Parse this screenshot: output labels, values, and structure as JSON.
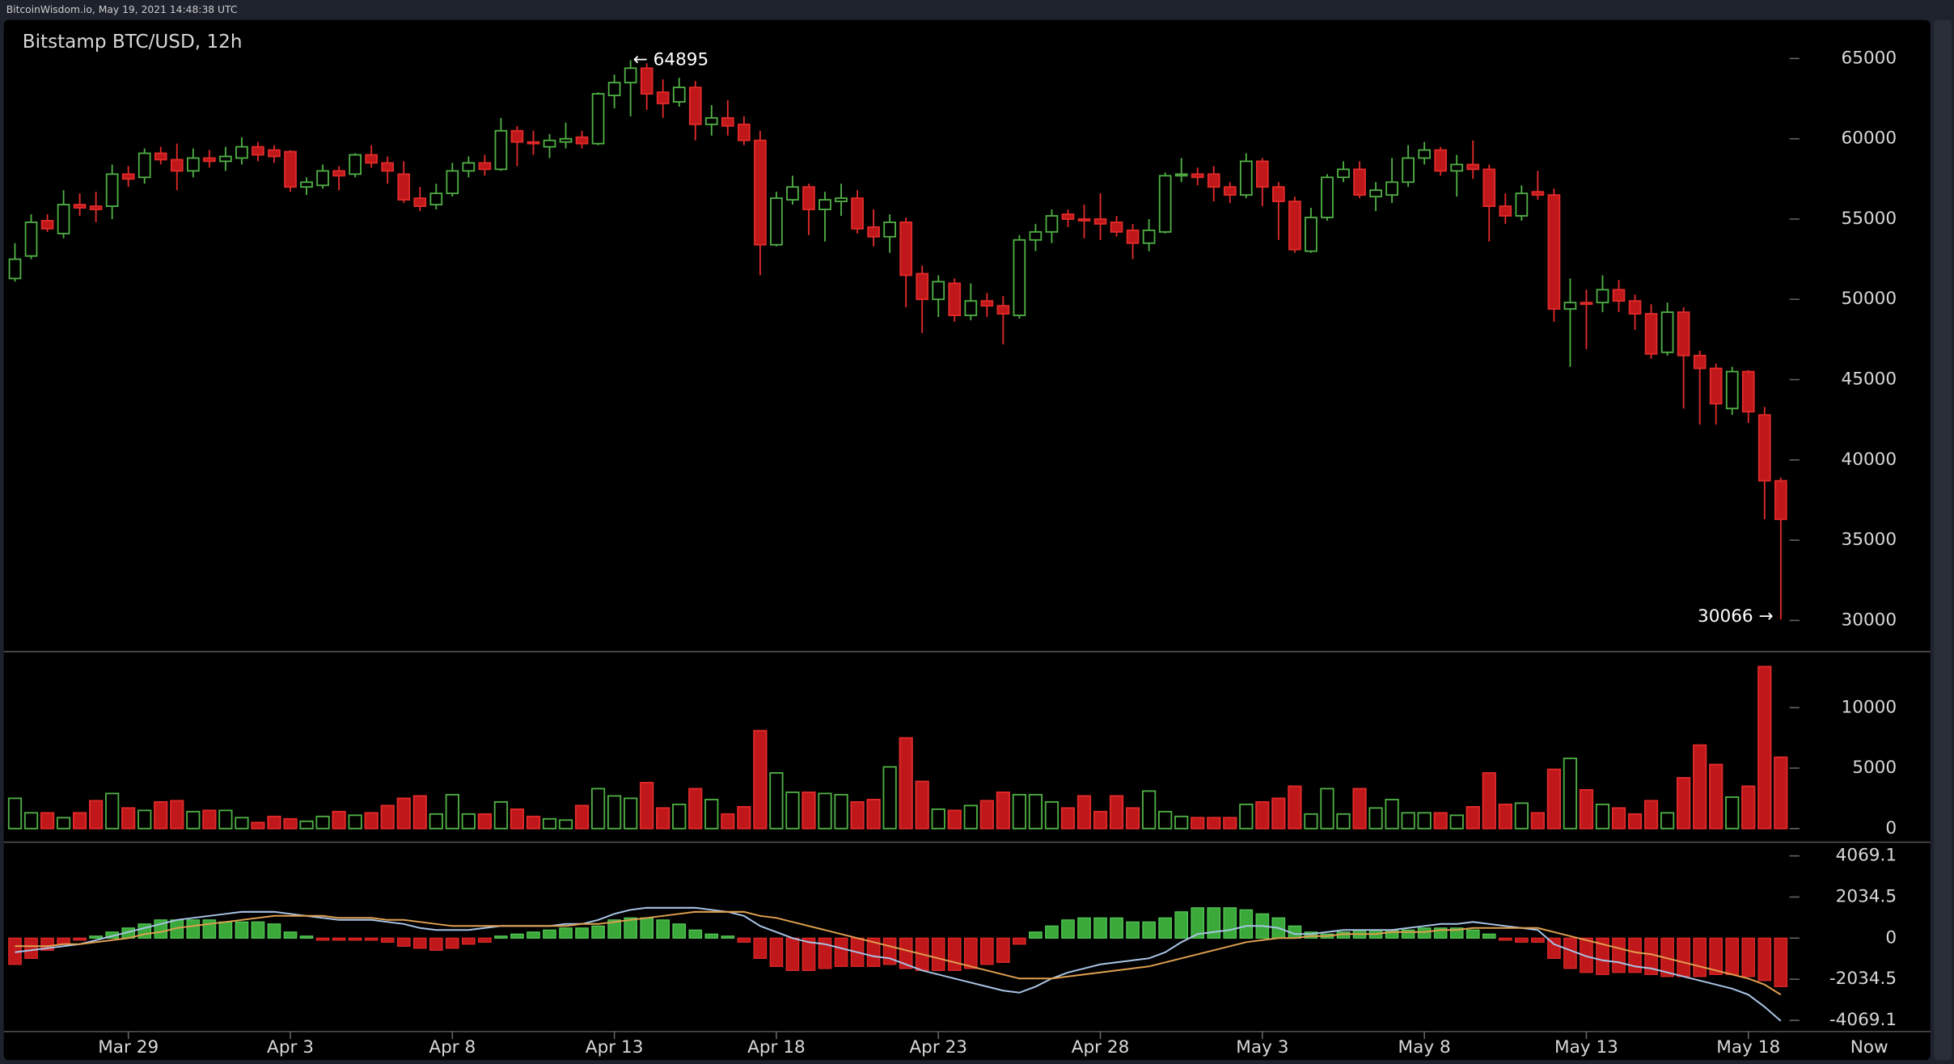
{
  "header": "BitcoinWisdom.io, May 19, 2021 14:48:38 UTC",
  "now_label": "Now",
  "chart_data": [
    {
      "type": "candlestick",
      "title": "Bitstamp BTC/USD, 12h",
      "categories": [
        null,
        null,
        null,
        null,
        null,
        null,
        null,
        "Mar 29",
        null,
        null,
        null,
        null,
        null,
        null,
        null,
        null,
        null,
        "Apr 3",
        null,
        null,
        null,
        null,
        null,
        null,
        null,
        null,
        null,
        "Apr 8",
        null,
        null,
        null,
        null,
        null,
        null,
        null,
        null,
        null,
        "Apr 13",
        null,
        null,
        null,
        null,
        null,
        null,
        null,
        null,
        null,
        "Apr 18",
        null,
        null,
        null,
        null,
        null,
        null,
        null,
        null,
        null,
        "Apr 23",
        null,
        null,
        null,
        null,
        null,
        null,
        null,
        null,
        null,
        "Apr 28",
        null,
        null,
        null,
        null,
        null,
        null,
        null,
        null,
        null,
        "May 3",
        null,
        null,
        null,
        null,
        null,
        null,
        null,
        null,
        null,
        "May 8",
        null,
        null,
        null,
        null,
        null,
        null,
        null,
        null,
        null,
        "May 13",
        null,
        null,
        null,
        null,
        null,
        null,
        null,
        null,
        null,
        "May 18",
        null,
        null
      ],
      "open": [
        51300,
        52700,
        54900,
        54100,
        55900,
        55800,
        55800,
        57800,
        57600,
        59100,
        58700,
        58000,
        58800,
        58600,
        58800,
        59500,
        59300,
        59200,
        57000,
        57100,
        58000,
        57800,
        59000,
        58500,
        57800,
        56300,
        55900,
        56600,
        58000,
        58500,
        58100,
        60500,
        59800,
        59500,
        59800,
        60100,
        59700,
        62700,
        63500,
        64400,
        62900,
        62300,
        63200,
        60900,
        61300,
        60900,
        59900,
        53400,
        56200,
        57000,
        55600,
        56100,
        56300,
        54500,
        53900,
        54800,
        51600,
        50000,
        51000,
        49000,
        49900,
        49600,
        49000,
        53700,
        54200,
        55300,
        55000,
        55000,
        54800,
        54300,
        53500,
        54200,
        57700,
        57800,
        57800,
        57000,
        56500,
        58600,
        57000,
        56100,
        53000,
        55100,
        57600,
        58100,
        56400,
        56500,
        57300,
        58800,
        59300,
        58000,
        58400,
        58100,
        55800,
        55200,
        56700,
        56500,
        49400,
        49800,
        49800,
        50600,
        49900,
        49100,
        46700,
        49200,
        46500,
        45700,
        43200,
        45500,
        42800,
        38700
      ],
      "high": [
        53500,
        55300,
        55300,
        56800,
        56600,
        56700,
        58400,
        58300,
        59400,
        59500,
        59700,
        59400,
        59300,
        59500,
        60100,
        59800,
        59600,
        59300,
        57600,
        58400,
        58300,
        59100,
        59600,
        58900,
        58600,
        57000,
        57200,
        58500,
        58900,
        59000,
        61300,
        60800,
        60500,
        60300,
        61000,
        60500,
        62900,
        64000,
        64895,
        64700,
        63700,
        63800,
        63600,
        62100,
        62400,
        61400,
        60500,
        56700,
        57700,
        57200,
        56700,
        57200,
        56800,
        55600,
        55300,
        55100,
        52100,
        51500,
        51300,
        51000,
        50400,
        50200,
        54000,
        54700,
        55600,
        55600,
        55900,
        56600,
        55200,
        54700,
        55000,
        57900,
        58800,
        58200,
        58300,
        57300,
        59100,
        58800,
        57300,
        56400,
        55700,
        57800,
        58600,
        58600,
        57300,
        58800,
        59600,
        59800,
        59500,
        59000,
        59900,
        58400,
        56600,
        57100,
        58000,
        56900,
        51300,
        50600,
        51500,
        51200,
        50300,
        49700,
        49800,
        49500,
        46800,
        46000,
        45800,
        45600,
        43300,
        38900
      ],
      "low": [
        51100,
        52500,
        54200,
        53800,
        55200,
        54800,
        55000,
        57000,
        57200,
        58400,
        56800,
        57600,
        58200,
        58000,
        58400,
        58600,
        58500,
        56700,
        56500,
        56900,
        56800,
        57600,
        58200,
        57200,
        56000,
        55500,
        55600,
        56400,
        57600,
        57700,
        58000,
        58300,
        59000,
        58800,
        59400,
        59400,
        59600,
        61900,
        61400,
        61800,
        61300,
        62000,
        59900,
        60200,
        60200,
        59600,
        51500,
        53300,
        55900,
        54000,
        53600,
        55200,
        54100,
        53300,
        52900,
        49500,
        47900,
        48900,
        48600,
        48700,
        48900,
        47200,
        48800,
        53000,
        53500,
        54500,
        53800,
        53700,
        53900,
        52500,
        53000,
        54100,
        57300,
        57100,
        56100,
        56000,
        56300,
        55800,
        53700,
        52900,
        52900,
        54900,
        57300,
        56300,
        55500,
        56000,
        57000,
        58400,
        57700,
        56400,
        57500,
        53600,
        54700,
        54900,
        56200,
        48600,
        45800,
        46900,
        49200,
        49200,
        48100,
        46300,
        46500,
        43200,
        42200,
        42200,
        42800,
        42300,
        36300,
        30066
      ],
      "close": [
        52500,
        54800,
        54400,
        55900,
        55700,
        55600,
        57800,
        57500,
        59100,
        58700,
        58000,
        58800,
        58600,
        58900,
        59500,
        59000,
        58900,
        57000,
        57300,
        58000,
        57700,
        59000,
        58500,
        58000,
        56200,
        55800,
        56600,
        58000,
        58500,
        58100,
        60500,
        59800,
        59700,
        59900,
        60000,
        59700,
        62800,
        63500,
        64400,
        62800,
        62200,
        63200,
        60900,
        61300,
        60800,
        59900,
        53400,
        56300,
        57000,
        55600,
        56200,
        56300,
        54400,
        53900,
        54800,
        51500,
        50000,
        51100,
        49000,
        49900,
        49600,
        49100,
        53700,
        54200,
        55200,
        55000,
        54900,
        54700,
        54200,
        53500,
        54300,
        57700,
        57800,
        57600,
        57000,
        56500,
        58600,
        57000,
        56100,
        53100,
        55100,
        57600,
        58100,
        56500,
        56800,
        57300,
        58800,
        59300,
        58000,
        58400,
        58100,
        55800,
        55200,
        56600,
        56500,
        49400,
        49800,
        49700,
        50600,
        49900,
        49100,
        46600,
        49200,
        46500,
        45700,
        43500,
        45500,
        43000,
        38700,
        36300
      ],
      "up_color": "#4fae44",
      "down_color": "#c0181a",
      "high_label": "← 64895",
      "low_label": "30066 →",
      "ylim": [
        28060,
        67400
      ],
      "yticks": [
        30000,
        35000,
        40000,
        45000,
        50000,
        55000,
        60000,
        65000
      ]
    },
    {
      "type": "volume",
      "values": [
        2500,
        1300,
        1300,
        900,
        1300,
        2300,
        2900,
        1700,
        1500,
        2200,
        2300,
        1400,
        1500,
        1500,
        900,
        500,
        1000,
        800,
        600,
        1000,
        1400,
        1100,
        1300,
        1900,
        2500,
        2700,
        1200,
        2800,
        1200,
        1200,
        2200,
        1600,
        1000,
        800,
        700,
        1900,
        3300,
        2700,
        2500,
        3800,
        1700,
        2000,
        3300,
        2400,
        1200,
        1800,
        8100,
        4600,
        3000,
        3000,
        2900,
        2800,
        2200,
        2400,
        5100,
        7500,
        3900,
        1600,
        1500,
        1900,
        2300,
        3000,
        2800,
        2800,
        2200,
        1700,
        2700,
        1400,
        2700,
        1700,
        3100,
        1400,
        1000,
        900,
        900,
        900,
        2000,
        2200,
        2500,
        3500,
        1200,
        3300,
        1200,
        3300,
        1700,
        2400,
        1300,
        1300,
        1300,
        1100,
        1800,
        4600,
        2000,
        2100,
        1300,
        4900,
        5800,
        3200,
        2000,
        1700,
        1200,
        2300,
        1300,
        4200,
        6900,
        5300,
        2600,
        3500,
        13400,
        5900
      ],
      "ylim": [
        -1130,
        14640
      ],
      "yticks": [
        0,
        5000,
        10000
      ]
    },
    {
      "type": "macd",
      "histogram": [
        -1300,
        -1000,
        -600,
        -300,
        -100,
        100,
        300,
        500,
        700,
        900,
        900,
        900,
        900,
        800,
        800,
        800,
        700,
        300,
        100,
        -100,
        -100,
        -100,
        -100,
        -200,
        -400,
        -500,
        -600,
        -500,
        -300,
        -200,
        100,
        200,
        300,
        400,
        500,
        500,
        600,
        900,
        1000,
        1000,
        900,
        700,
        400,
        200,
        100,
        -200,
        -1000,
        -1400,
        -1600,
        -1600,
        -1500,
        -1400,
        -1400,
        -1400,
        -1300,
        -1500,
        -1600,
        -1600,
        -1600,
        -1500,
        -1300,
        -1200,
        -300,
        300,
        600,
        900,
        1000,
        1000,
        1000,
        800,
        800,
        1000,
        1300,
        1500,
        1500,
        1500,
        1400,
        1200,
        1000,
        600,
        300,
        200,
        300,
        400,
        400,
        400,
        400,
        500,
        500,
        500,
        400,
        200,
        -100,
        -200,
        -200,
        -1000,
        -1500,
        -1700,
        -1800,
        -1700,
        -1700,
        -1800,
        -1900,
        -1900,
        -1900,
        -1800,
        -1800,
        -1900,
        -2100,
        -2400
      ],
      "macd": [
        -700,
        -600,
        -500,
        -400,
        -300,
        -100,
        100,
        300,
        500,
        700,
        900,
        1000,
        1100,
        1200,
        1300,
        1300,
        1300,
        1200,
        1100,
        1000,
        900,
        900,
        900,
        800,
        700,
        500,
        400,
        400,
        400,
        500,
        600,
        600,
        600,
        600,
        700,
        700,
        900,
        1200,
        1400,
        1500,
        1500,
        1500,
        1500,
        1400,
        1300,
        1100,
        600,
        300,
        0,
        -200,
        -300,
        -500,
        -700,
        -900,
        -1000,
        -1300,
        -1600,
        -1800,
        -2000,
        -2200,
        -2400,
        -2600,
        -2700,
        -2400,
        -2000,
        -1700,
        -1500,
        -1300,
        -1200,
        -1100,
        -1000,
        -700,
        -200,
        200,
        300,
        400,
        600,
        600,
        500,
        200,
        200,
        300,
        400,
        400,
        400,
        400,
        500,
        600,
        700,
        700,
        800,
        700,
        600,
        500,
        400,
        -300,
        -600,
        -900,
        -1100,
        -1200,
        -1400,
        -1500,
        -1700,
        -1900,
        -2100,
        -2300,
        -2500,
        -2800,
        -3400,
        -4100
      ],
      "signal": [
        -400,
        -400,
        -400,
        -300,
        -300,
        -200,
        -100,
        0,
        200,
        300,
        500,
        600,
        700,
        800,
        900,
        1000,
        1100,
        1100,
        1100,
        1100,
        1000,
        1000,
        1000,
        900,
        900,
        800,
        700,
        600,
        600,
        600,
        600,
        600,
        600,
        600,
        600,
        700,
        700,
        800,
        900,
        1000,
        1100,
        1200,
        1300,
        1300,
        1300,
        1300,
        1100,
        1000,
        800,
        600,
        400,
        200,
        0,
        -200,
        -400,
        -600,
        -800,
        -1000,
        -1200,
        -1400,
        -1600,
        -1800,
        -2000,
        -2000,
        -2000,
        -1900,
        -1800,
        -1700,
        -1600,
        -1500,
        -1400,
        -1200,
        -1000,
        -800,
        -600,
        -400,
        -200,
        -100,
        0,
        0,
        100,
        100,
        200,
        200,
        200,
        300,
        300,
        300,
        400,
        400,
        500,
        500,
        500,
        500,
        500,
        300,
        100,
        -100,
        -300,
        -500,
        -700,
        -800,
        -1000,
        -1200,
        -1400,
        -1600,
        -1800,
        -2000,
        -2300,
        -2800
      ],
      "macd_color": "#a9c4e6",
      "signal_color": "#e0a050",
      "ylim": [
        -4624,
        4747
      ],
      "yticks": [
        -4069.1,
        -2034.5,
        0,
        2034.5,
        4069.1
      ]
    }
  ]
}
